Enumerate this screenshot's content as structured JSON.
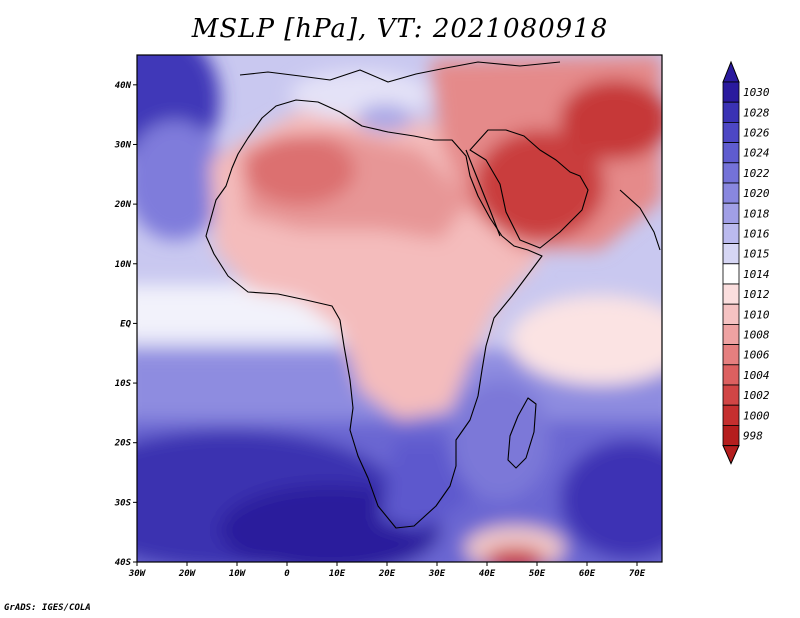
{
  "title": "MSLP [hPa], VT: 2021080918",
  "credit": "GrADS: IGES/COLA",
  "map": {
    "region": "Africa and surroundings",
    "variable": "Mean sea level pressure",
    "units": "hPa",
    "lon_range": [
      -30,
      75
    ],
    "lat_range": [
      -40,
      45
    ],
    "x_ticks": [
      "30W",
      "20W",
      "10W",
      "0",
      "10E",
      "20E",
      "30E",
      "40E",
      "50E",
      "60E",
      "70E"
    ],
    "y_ticks": [
      "40N",
      "30N",
      "20N",
      "10N",
      "EQ",
      "10S",
      "20S",
      "30S",
      "40S"
    ],
    "features": [
      {
        "name": "Arabian heat low",
        "description": "lowest pressures (~1000-1002 hPa) over Arabia and Iran/Pakistan"
      },
      {
        "name": "Saharan heat low",
        "description": "1006-1008 hPa over western Sahara"
      },
      {
        "name": "South Atlantic high",
        "description": "highest pressures (~1026-1030 hPa) off southwestern Africa"
      },
      {
        "name": "Azores high edge",
        "description": "~1024-1028 hPa in northwest corner"
      },
      {
        "name": "Southern Indian Ocean low",
        "description": "~998-1004 hPa near 45E, 40S"
      }
    ]
  },
  "colorbar": {
    "levels": [
      "1030",
      "1028",
      "1026",
      "1024",
      "1022",
      "1020",
      "1018",
      "1016",
      "1015",
      "1014",
      "1012",
      "1010",
      "1008",
      "1006",
      "1004",
      "1002",
      "1000",
      "998"
    ],
    "colors": [
      "#2a1a9e",
      "#3a32b4",
      "#4d47c4",
      "#5f5ccf",
      "#7472d8",
      "#8987df",
      "#a19fe6",
      "#bbbaee",
      "#d6d6f4",
      "#ffffff",
      "#fbdede",
      "#f5c2c2",
      "#eea2a2",
      "#e57f7f",
      "#dc6060",
      "#d14545",
      "#c52f2f",
      "#b51e1e"
    ]
  }
}
